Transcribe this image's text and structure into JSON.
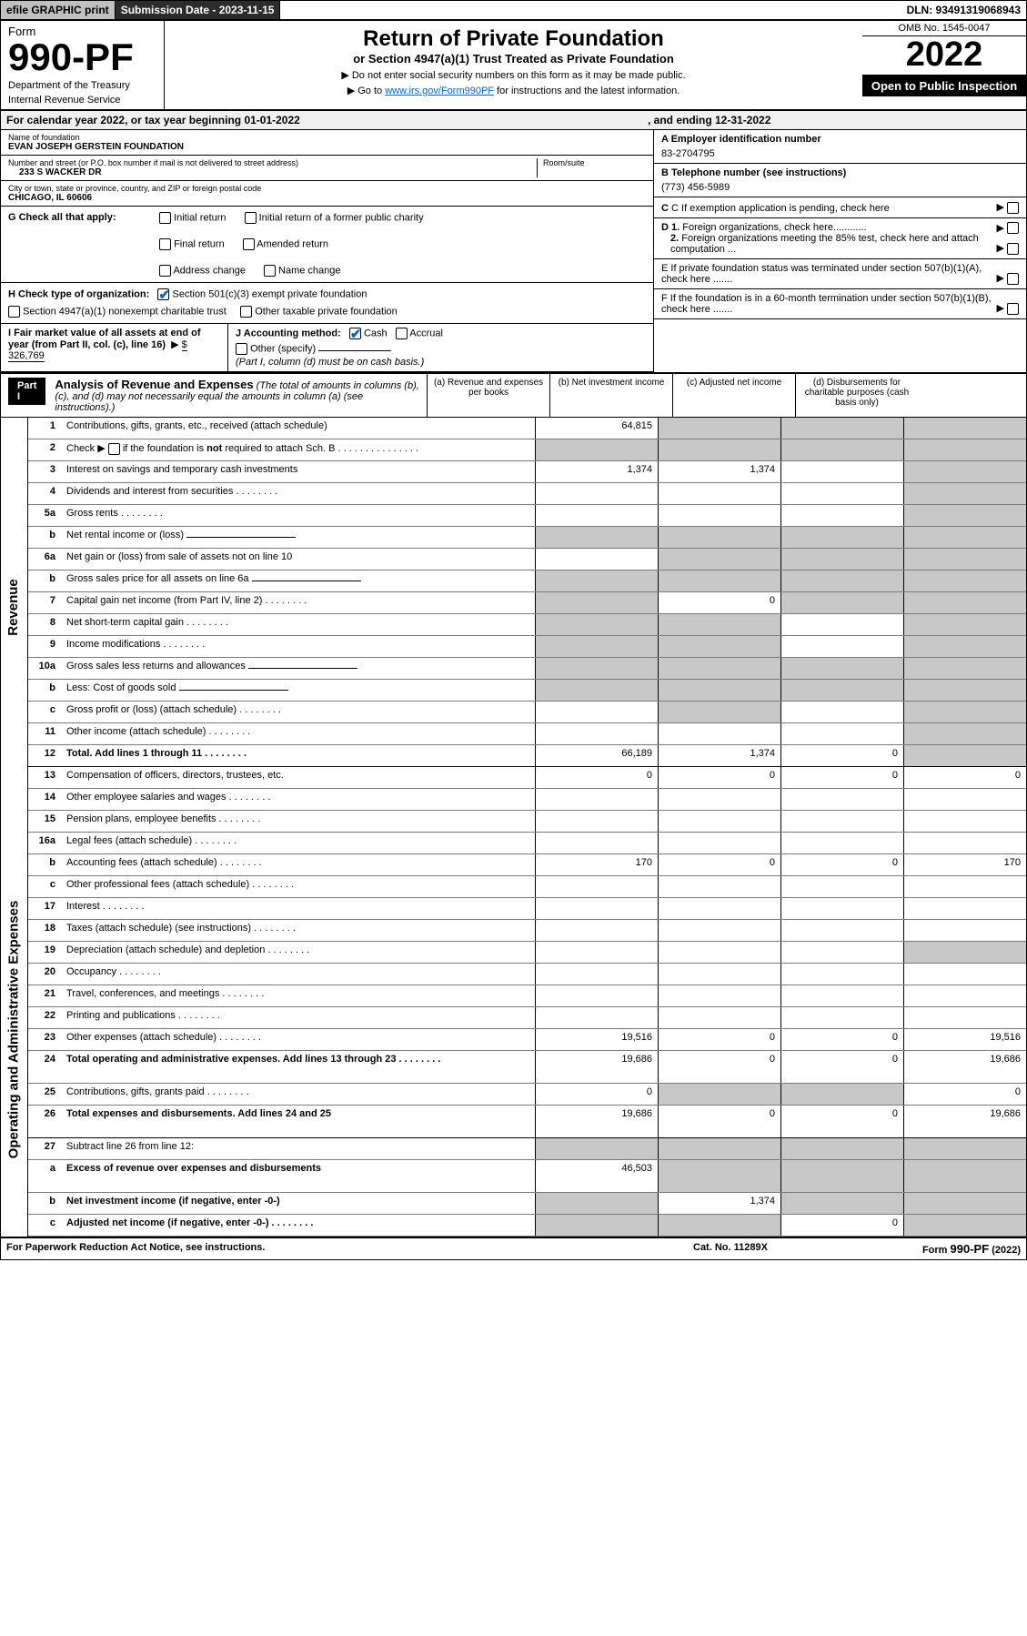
{
  "top": {
    "efile": "efile GRAPHIC print",
    "submission": "Submission Date - 2023-11-15",
    "dln": "DLN: 93491319068943"
  },
  "header": {
    "form_word": "Form",
    "form_num": "990-PF",
    "dept1": "Department of the Treasury",
    "dept2": "Internal Revenue Service",
    "title": "Return of Private Foundation",
    "subtitle": "or Section 4947(a)(1) Trust Treated as Private Foundation",
    "instr1": "▶ Do not enter social security numbers on this form as it may be made public.",
    "instr2_pre": "▶ Go to ",
    "instr2_link": "www.irs.gov/Form990PF",
    "instr2_post": " for instructions and the latest information.",
    "omb": "OMB No. 1545-0047",
    "year": "2022",
    "open": "Open to Public Inspection"
  },
  "calendar": {
    "text": "For calendar year 2022, or tax year beginning 01-01-2022",
    "ending": ", and ending 12-31-2022"
  },
  "foundation": {
    "name_label": "Name of foundation",
    "name": "EVAN JOSEPH GERSTEIN FOUNDATION",
    "street_label": "Number and street (or P.O. box number if mail is not delivered to street address)",
    "street": "233 S WACKER DR",
    "room_label": "Room/suite",
    "city_label": "City or town, state or province, country, and ZIP or foreign postal code",
    "city": "CHICAGO, IL  60606"
  },
  "right_info": {
    "a_label": "A Employer identification number",
    "a_val": "83-2704795",
    "b_label": "B Telephone number (see instructions)",
    "b_val": "(773) 456-5989",
    "c_label": "C If exemption application is pending, check here",
    "d1_label": "D 1. Foreign organizations, check here............",
    "d2_label": "2. Foreign organizations meeting the 85% test, check here and attach computation ...",
    "e_label": "E  If private foundation status was terminated under section 507(b)(1)(A), check here .......",
    "f_label": "F  If the foundation is in a 60-month termination under section 507(b)(1)(B), check here ......."
  },
  "section_g": {
    "label": "G Check all that apply:",
    "opts": [
      "Initial return",
      "Final return",
      "Address change",
      "Initial return of a former public charity",
      "Amended return",
      "Name change"
    ]
  },
  "section_h": {
    "label": "H Check type of organization:",
    "opt1": "Section 501(c)(3) exempt private foundation",
    "opt2": "Section 4947(a)(1) nonexempt charitable trust",
    "opt3": "Other taxable private foundation"
  },
  "section_i": {
    "label": "I Fair market value of all assets at end of year (from Part II, col. (c), line 16)",
    "arrow": "▶",
    "val": "$  326,769"
  },
  "section_j": {
    "label": "J Accounting method:",
    "cash": "Cash",
    "accrual": "Accrual",
    "other": "Other (specify)",
    "note": "(Part I, column (d) must be on cash basis.)"
  },
  "part1": {
    "label": "Part I",
    "title": "Analysis of Revenue and Expenses",
    "note": "(The total of amounts in columns (b), (c), and (d) may not necessarily equal the amounts in column (a) (see instructions).)",
    "col_a": "(a)   Revenue and expenses per books",
    "col_b": "(b)   Net investment income",
    "col_c": "(c)   Adjusted net income",
    "col_d": "(d)  Disbursements for charitable purposes (cash basis only)"
  },
  "side_labels": {
    "revenue": "Revenue",
    "expenses": "Operating and Administrative Expenses"
  },
  "rows": [
    {
      "n": "1",
      "d": "Contributions, gifts, grants, etc., received (attach schedule)",
      "a": "64,815",
      "b_sh": true,
      "c_sh": true,
      "d_sh": true
    },
    {
      "n": "2",
      "d": "Check ▶ ☐ if the foundation is not required to attach Sch. B",
      "dotted": true,
      "a_sh": true,
      "b_sh": true,
      "c_sh": true,
      "d_sh": true,
      "html": true
    },
    {
      "n": "3",
      "d": "Interest on savings and temporary cash investments",
      "a": "1,374",
      "b": "1,374",
      "d_sh": true
    },
    {
      "n": "4",
      "d": "Dividends and interest from securities",
      "dotted": true,
      "d_sh": true
    },
    {
      "n": "5a",
      "d": "Gross rents",
      "dotted": true,
      "d_sh": true
    },
    {
      "n": "b",
      "d": "Net rental income or (loss)",
      "inline": true,
      "a_sh": true,
      "b_sh": true,
      "c_sh": true,
      "d_sh": true
    },
    {
      "n": "6a",
      "d": "Net gain or (loss) from sale of assets not on line 10",
      "b_sh": true,
      "c_sh": true,
      "d_sh": true
    },
    {
      "n": "b",
      "d": "Gross sales price for all assets on line 6a",
      "inline": true,
      "a_sh": true,
      "b_sh": true,
      "c_sh": true,
      "d_sh": true
    },
    {
      "n": "7",
      "d": "Capital gain net income (from Part IV, line 2)",
      "dotted": true,
      "a_sh": true,
      "b": "0",
      "c_sh": true,
      "d_sh": true
    },
    {
      "n": "8",
      "d": "Net short-term capital gain",
      "dotted": true,
      "a_sh": true,
      "b_sh": true,
      "d_sh": true
    },
    {
      "n": "9",
      "d": "Income modifications",
      "dotted": true,
      "a_sh": true,
      "b_sh": true,
      "d_sh": true
    },
    {
      "n": "10a",
      "d": "Gross sales less returns and allowances",
      "inline": true,
      "a_sh": true,
      "b_sh": true,
      "c_sh": true,
      "d_sh": true
    },
    {
      "n": "b",
      "d": "Less: Cost of goods sold",
      "dotted": true,
      "inline": true,
      "a_sh": true,
      "b_sh": true,
      "c_sh": true,
      "d_sh": true
    },
    {
      "n": "c",
      "d": "Gross profit or (loss) (attach schedule)",
      "dotted": true,
      "a_sh": false,
      "b_sh": true,
      "d_sh": true
    },
    {
      "n": "11",
      "d": "Other income (attach schedule)",
      "dotted": true,
      "d_sh": true
    },
    {
      "n": "12",
      "d": "Total. Add lines 1 through 11",
      "dotted": true,
      "bold": true,
      "a": "66,189",
      "b": "1,374",
      "c": "0",
      "d_sh": true,
      "thick": true
    }
  ],
  "exp_rows": [
    {
      "n": "13",
      "d": "Compensation of officers, directors, trustees, etc.",
      "a": "0",
      "b": "0",
      "c": "0",
      "dd": "0"
    },
    {
      "n": "14",
      "d": "Other employee salaries and wages",
      "dotted": true
    },
    {
      "n": "15",
      "d": "Pension plans, employee benefits",
      "dotted": true
    },
    {
      "n": "16a",
      "d": "Legal fees (attach schedule)",
      "dotted": true
    },
    {
      "n": "b",
      "d": "Accounting fees (attach schedule)",
      "dotted": true,
      "a": "170",
      "b": "0",
      "c": "0",
      "dd": "170"
    },
    {
      "n": "c",
      "d": "Other professional fees (attach schedule)",
      "dotted": true
    },
    {
      "n": "17",
      "d": "Interest",
      "dotted": true
    },
    {
      "n": "18",
      "d": "Taxes (attach schedule) (see instructions)",
      "dotted": true
    },
    {
      "n": "19",
      "d": "Depreciation (attach schedule) and depletion",
      "dotted": true,
      "d_sh": true
    },
    {
      "n": "20",
      "d": "Occupancy",
      "dotted": true
    },
    {
      "n": "21",
      "d": "Travel, conferences, and meetings",
      "dotted": true
    },
    {
      "n": "22",
      "d": "Printing and publications",
      "dotted": true
    },
    {
      "n": "23",
      "d": "Other expenses (attach schedule)",
      "dotted": true,
      "a": "19,516",
      "b": "0",
      "c": "0",
      "dd": "19,516"
    },
    {
      "n": "24",
      "d": "Total operating and administrative expenses. Add lines 13 through 23",
      "dotted": true,
      "bold": true,
      "a": "19,686",
      "b": "0",
      "c": "0",
      "dd": "19,686",
      "two": true
    },
    {
      "n": "25",
      "d": "Contributions, gifts, grants paid",
      "dotted": true,
      "a": "0",
      "b_sh": true,
      "c_sh": true,
      "dd": "0"
    },
    {
      "n": "26",
      "d": "Total expenses and disbursements. Add lines 24 and 25",
      "bold": true,
      "a": "19,686",
      "b": "0",
      "c": "0",
      "dd": "19,686",
      "two": true,
      "thick": true
    },
    {
      "n": "27",
      "d": "Subtract line 26 from line 12:",
      "a_sh": true,
      "b_sh": true,
      "c_sh": true,
      "d_sh": true
    },
    {
      "n": "a",
      "d": "Excess of revenue over expenses and disbursements",
      "bold": true,
      "a": "46,503",
      "b_sh": true,
      "c_sh": true,
      "d_sh": true,
      "two": true
    },
    {
      "n": "b",
      "d": "Net investment income (if negative, enter -0-)",
      "bold": true,
      "a_sh": true,
      "b": "1,374",
      "c_sh": true,
      "d_sh": true
    },
    {
      "n": "c",
      "d": "Adjusted net income (if negative, enter -0-)",
      "bold": true,
      "dotted": true,
      "a_sh": true,
      "b_sh": true,
      "c": "0",
      "d_sh": true
    }
  ],
  "footer": {
    "left": "For Paperwork Reduction Act Notice, see instructions.",
    "center": "Cat. No. 11289X",
    "right": "Form 990-PF (2022)"
  }
}
